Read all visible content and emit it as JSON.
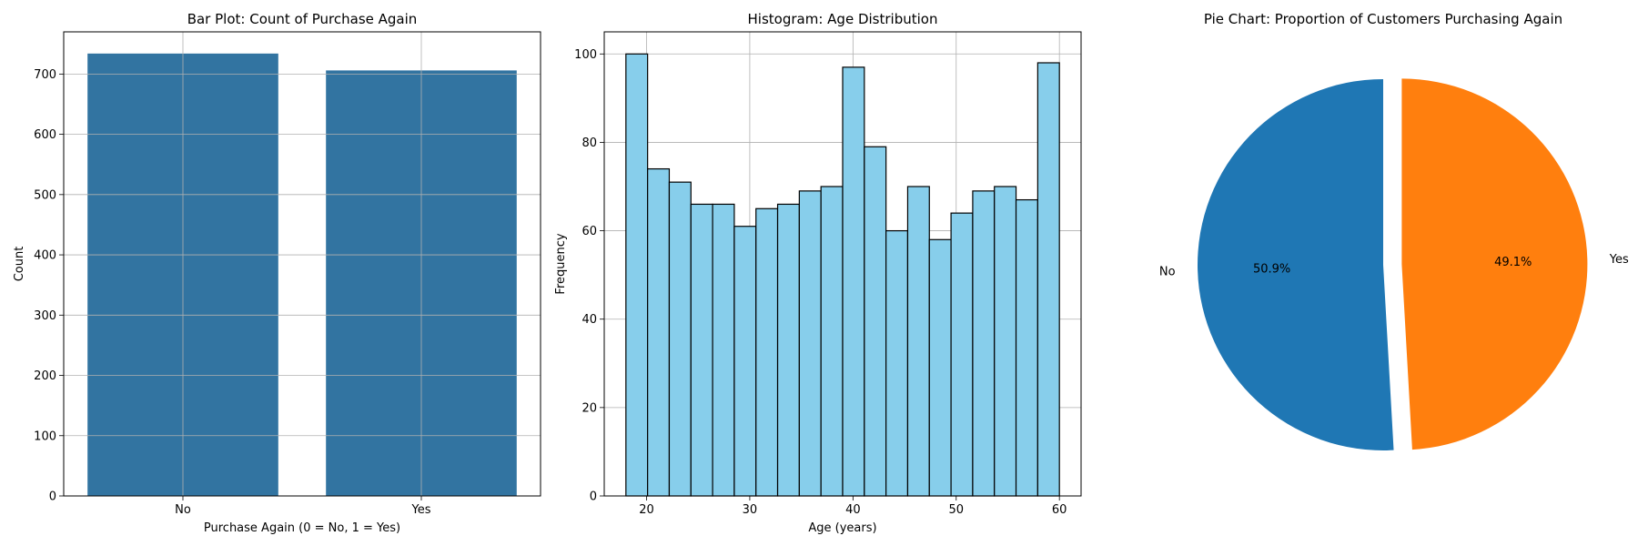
{
  "chart_data": [
    {
      "type": "bar",
      "title": "Bar Plot: Count of Purchase Again",
      "xlabel": "Purchase Again (0 = No, 1 = Yes)",
      "ylabel": "Count",
      "categories": [
        "No",
        "Yes"
      ],
      "values": [
        734,
        706
      ],
      "ylim": [
        0,
        770
      ],
      "yticks": [
        0,
        100,
        200,
        300,
        400,
        500,
        600,
        700
      ],
      "grid": true,
      "colors": {
        "bar": "#3274a1"
      }
    },
    {
      "type": "bar",
      "title": "Histogram: Age Distribution",
      "xlabel": "Age (years)",
      "ylabel": "Frequency",
      "bin_range": [
        18,
        60
      ],
      "bins": 20,
      "values": [
        100,
        74,
        71,
        66,
        66,
        61,
        65,
        66,
        69,
        70,
        97,
        79,
        60,
        70,
        58,
        64,
        69,
        70,
        67,
        98
      ],
      "xlim": [
        15.9,
        62.1
      ],
      "ylim": [
        0,
        105
      ],
      "xticks": [
        20,
        30,
        40,
        50,
        60
      ],
      "yticks": [
        0,
        20,
        40,
        60,
        80,
        100
      ],
      "grid": true,
      "colors": {
        "bar": "#87ceeb",
        "edge": "#000000"
      }
    },
    {
      "type": "pie",
      "title": "Pie Chart: Proportion of Customers Purchasing Again",
      "labels": [
        "No",
        "Yes"
      ],
      "values": [
        50.9,
        49.1
      ],
      "autopct": [
        "50.9%",
        "49.1%"
      ],
      "explode": [
        0,
        0.1
      ],
      "startangle": 90,
      "colors": [
        "#1f77b4",
        "#ff7f0e"
      ]
    }
  ]
}
